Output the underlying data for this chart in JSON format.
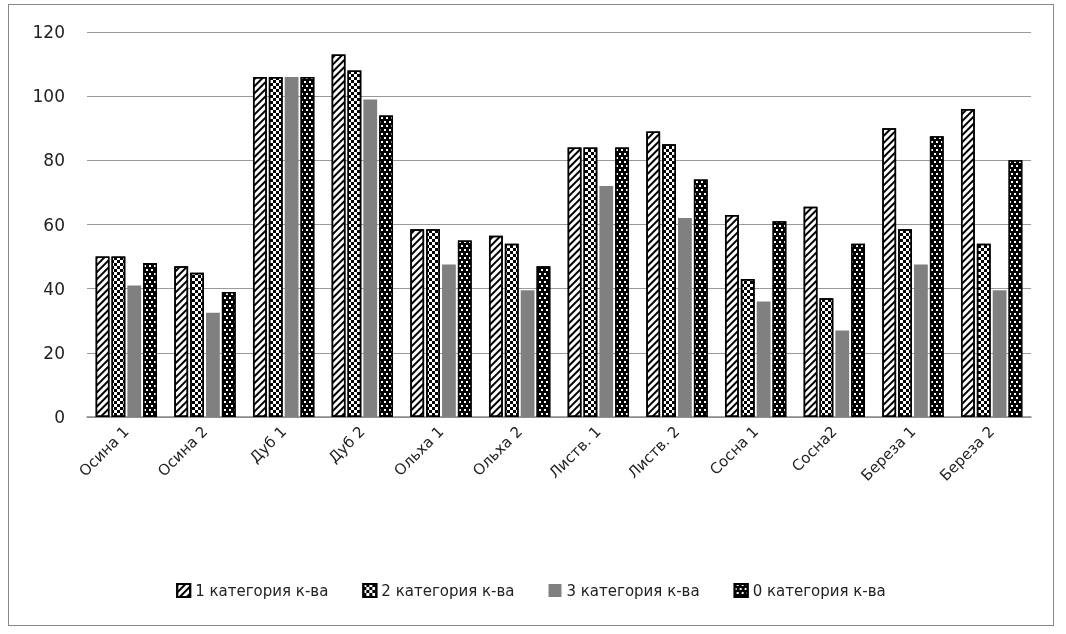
{
  "chart_data": {
    "type": "bar",
    "categories": [
      "Осина 1",
      "Осина 2",
      "Дуб 1",
      "Дуб 2",
      "Ольха 1",
      "Ольха 2",
      "Листв. 1",
      "Листв. 2",
      "Сосна 1",
      "Сосна2",
      "Береза 1",
      "Береза 2"
    ],
    "series": [
      {
        "name": "1 категория к-ва",
        "color": "#ffffff",
        "values": [
          50,
          47,
          106,
          113,
          58.5,
          56.5,
          84,
          89,
          63,
          65.5,
          90,
          96
        ]
      },
      {
        "name": "2 категория к-ва",
        "color": "#ffffff",
        "values": [
          50,
          45,
          106,
          108,
          58.5,
          54,
          84,
          85,
          43,
          37,
          58.5,
          54
        ]
      },
      {
        "name": "3 категория к-ва",
        "color": "#808080",
        "values": [
          41,
          32.5,
          106,
          99,
          47.5,
          39.5,
          72,
          62,
          36,
          27,
          47.5,
          39.5
        ]
      },
      {
        "name": "0 категория к-ва",
        "color": "#000000",
        "values": [
          48,
          39,
          106,
          94,
          55,
          47,
          84,
          74,
          61,
          54,
          87.5,
          80
        ]
      }
    ],
    "ylim": [
      0,
      120
    ],
    "yticks": [
      0,
      20,
      40,
      60,
      80,
      100,
      120
    ],
    "grid": "y",
    "legend": "bottom"
  }
}
